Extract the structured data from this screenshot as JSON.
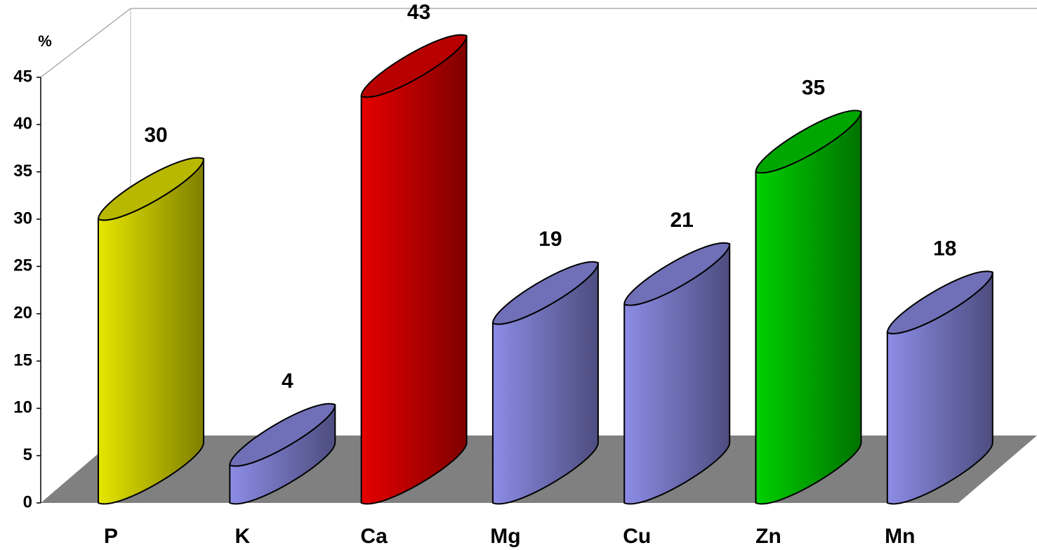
{
  "chart_data": {
    "type": "bar3d",
    "y_label": "%",
    "categories": [
      "P",
      "K",
      "Ca",
      "Mg",
      "Cu",
      "Zn",
      "Mn"
    ],
    "values": [
      30,
      4,
      43,
      19,
      21,
      35,
      18
    ],
    "colors": [
      "#e6e600",
      "#8c8ce6",
      "#e60000",
      "#8c8ce6",
      "#8c8ce6",
      "#00d000",
      "#8c8ce6"
    ],
    "ylim": [
      0,
      45
    ],
    "yticks": [
      0,
      5,
      10,
      15,
      20,
      25,
      30,
      35,
      40,
      45
    ]
  }
}
